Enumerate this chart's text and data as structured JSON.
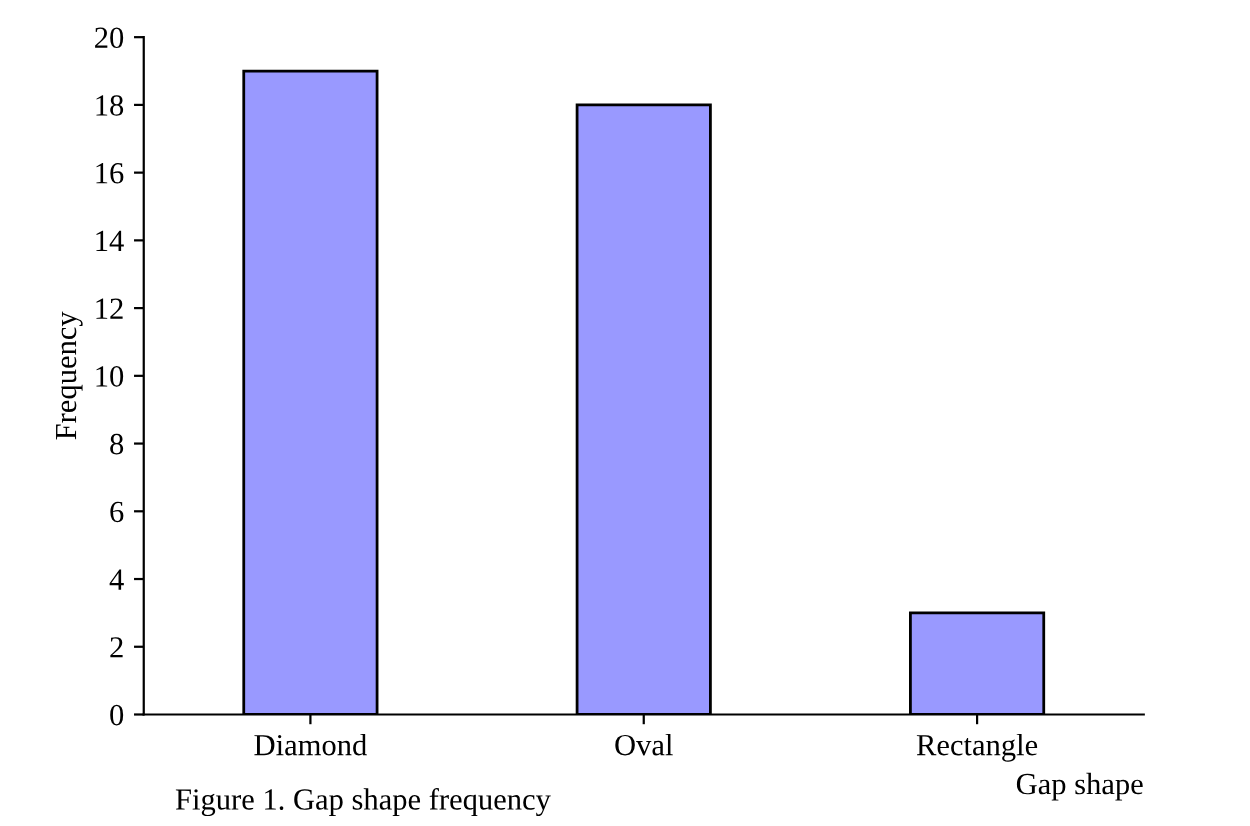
{
  "chart_data": {
    "type": "bar",
    "title": "Figure 1. Gap shape frequency",
    "xlabel": "Gap shape",
    "ylabel": "Frequency",
    "categories": [
      "Diamond",
      "Oval",
      "Rectangle"
    ],
    "values": [
      19,
      18,
      3
    ],
    "color": "#9999ff",
    "ylim": [
      0,
      20
    ],
    "yticks": [
      0,
      2,
      4,
      6,
      8,
      10,
      12,
      14,
      16,
      18,
      20
    ],
    "grid": false,
    "legend": false
  }
}
